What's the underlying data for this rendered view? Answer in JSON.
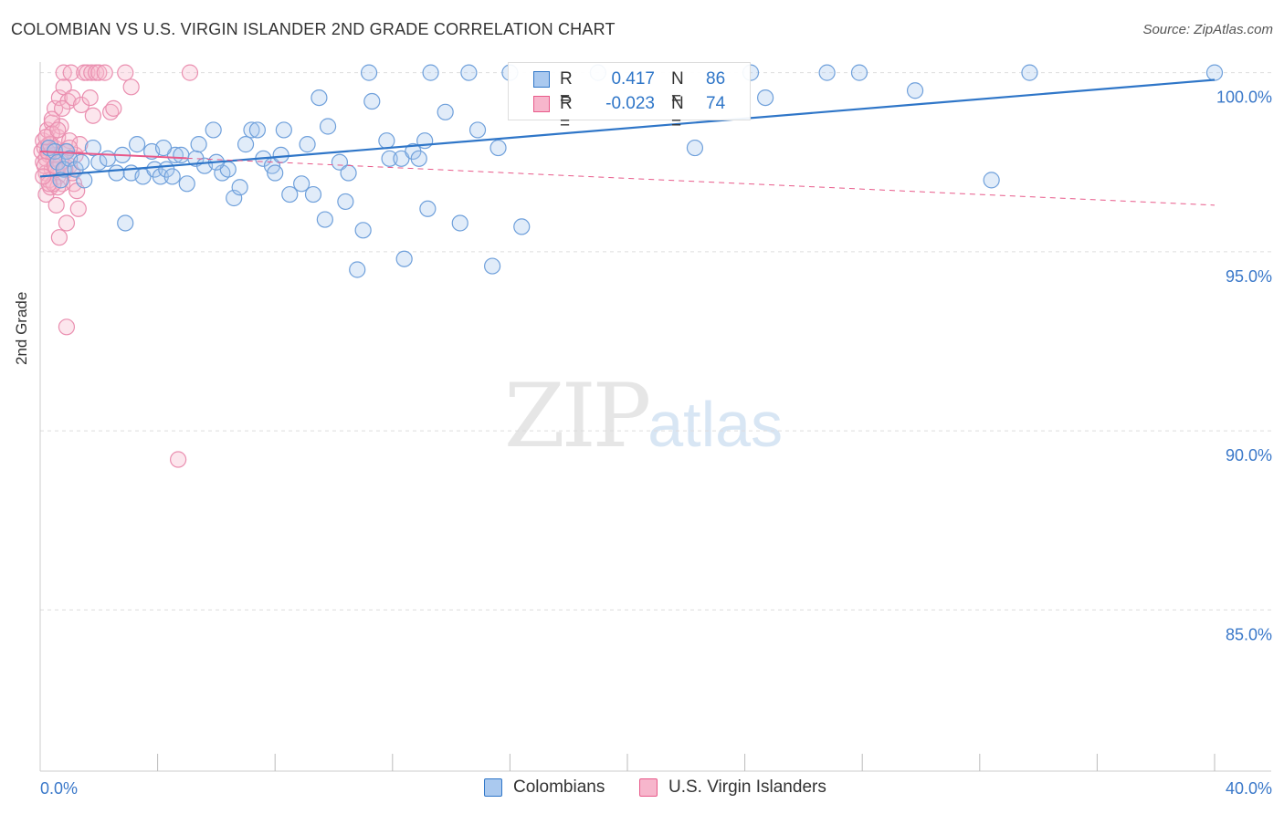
{
  "title": "COLOMBIAN VS U.S. VIRGIN ISLANDER 2ND GRADE CORRELATION CHART",
  "source": "Source: ZipAtlas.com",
  "watermark": {
    "zip": "ZIP",
    "atlas": "atlas"
  },
  "colors": {
    "blue": "#2f76c8",
    "blue_fill": "#aac9ef",
    "pink": "#e85a8a",
    "pink_fill": "#f7b6cc",
    "axis_label": "#3a78c9"
  },
  "legend": {
    "rows": [
      {
        "r_label": "R =",
        "r_value": "0.417",
        "n_label": "N =",
        "n_value": "86"
      },
      {
        "r_label": "R =",
        "r_value": "-0.023",
        "n_label": "N =",
        "n_value": "74"
      }
    ]
  },
  "bottom_legend": {
    "colombians": "Colombians",
    "virgin": "U.S. Virgin Islanders"
  },
  "chart_data": {
    "type": "scatter",
    "title": "COLOMBIAN VS U.S. VIRGIN ISLANDER 2ND GRADE CORRELATION CHART",
    "xlabel": "",
    "ylabel": "2nd Grade",
    "xlim": [
      0,
      40
    ],
    "ylim": [
      80.5,
      100.5
    ],
    "x_tick_labels": [
      "0.0%",
      "40.0%"
    ],
    "y_ticks": [
      100,
      95,
      90,
      85
    ],
    "y_tick_labels": [
      "100.0%",
      "95.0%",
      "90.0%",
      "85.0%"
    ],
    "grid": true,
    "series": [
      {
        "name": "Colombians",
        "color": "#2f76c8",
        "trend": {
          "x": [
            0,
            40
          ],
          "y": [
            97.1,
            99.8
          ]
        },
        "points": [
          [
            0.3,
            97.9
          ],
          [
            0.5,
            97.8
          ],
          [
            0.6,
            97.5
          ],
          [
            0.8,
            97.3
          ],
          [
            0.9,
            97.8
          ],
          [
            1.0,
            97.6
          ],
          [
            1.2,
            97.3
          ],
          [
            1.5,
            97.0
          ],
          [
            1.8,
            97.9
          ],
          [
            2.0,
            97.5
          ],
          [
            2.3,
            97.6
          ],
          [
            2.6,
            97.2
          ],
          [
            2.8,
            97.7
          ],
          [
            2.9,
            95.8
          ],
          [
            3.1,
            97.2
          ],
          [
            3.3,
            98.0
          ],
          [
            3.5,
            97.1
          ],
          [
            3.8,
            97.8
          ],
          [
            3.9,
            97.3
          ],
          [
            4.1,
            97.1
          ],
          [
            4.3,
            97.3
          ],
          [
            4.5,
            97.1
          ],
          [
            4.6,
            97.7
          ],
          [
            4.8,
            97.7
          ],
          [
            5.0,
            96.9
          ],
          [
            5.3,
            97.6
          ],
          [
            5.4,
            98.0
          ],
          [
            5.6,
            97.4
          ],
          [
            5.9,
            98.4
          ],
          [
            6.2,
            97.2
          ],
          [
            6.4,
            97.3
          ],
          [
            6.6,
            96.5
          ],
          [
            6.8,
            96.8
          ],
          [
            7.0,
            98.0
          ],
          [
            7.2,
            98.4
          ],
          [
            7.4,
            98.4
          ],
          [
            7.6,
            97.6
          ],
          [
            7.9,
            97.4
          ],
          [
            8.0,
            97.2
          ],
          [
            8.2,
            97.7
          ],
          [
            8.3,
            98.4
          ],
          [
            8.5,
            96.6
          ],
          [
            8.9,
            96.9
          ],
          [
            9.1,
            98.0
          ],
          [
            9.3,
            96.6
          ],
          [
            9.5,
            99.3
          ],
          [
            9.7,
            95.9
          ],
          [
            9.8,
            98.5
          ],
          [
            10.2,
            97.5
          ],
          [
            10.4,
            96.4
          ],
          [
            10.5,
            97.2
          ],
          [
            10.8,
            94.5
          ],
          [
            11.0,
            95.6
          ],
          [
            11.3,
            99.2
          ],
          [
            11.2,
            100.0
          ],
          [
            11.8,
            98.1
          ],
          [
            11.9,
            97.6
          ],
          [
            12.3,
            97.6
          ],
          [
            12.4,
            94.8
          ],
          [
            12.7,
            97.8
          ],
          [
            12.9,
            97.6
          ],
          [
            13.1,
            98.1
          ],
          [
            13.2,
            96.2
          ],
          [
            13.3,
            100.0
          ],
          [
            13.8,
            98.9
          ],
          [
            14.3,
            95.8
          ],
          [
            14.6,
            100.0
          ],
          [
            14.9,
            98.4
          ],
          [
            15.4,
            94.6
          ],
          [
            15.6,
            97.9
          ],
          [
            16.0,
            100.0
          ],
          [
            16.4,
            95.7
          ],
          [
            19.0,
            100.0
          ],
          [
            22.3,
            97.9
          ],
          [
            24.2,
            100.0
          ],
          [
            24.7,
            99.3
          ],
          [
            26.8,
            100.0
          ],
          [
            27.9,
            100.0
          ],
          [
            29.8,
            99.5
          ],
          [
            32.4,
            97.0
          ],
          [
            33.7,
            100.0
          ],
          [
            40.0,
            100.0
          ],
          [
            0.7,
            97.0
          ],
          [
            1.4,
            97.5
          ],
          [
            6.0,
            97.5
          ],
          [
            4.2,
            97.9
          ]
        ]
      },
      {
        "name": "U.S. Virgin Islanders",
        "color": "#e85a8a",
        "trend": {
          "x": [
            0,
            40
          ],
          "y": [
            97.8,
            96.3
          ],
          "solid_to_x": 5.0
        },
        "points": [
          [
            0.05,
            97.8
          ],
          [
            0.1,
            98.1
          ],
          [
            0.1,
            97.5
          ],
          [
            0.15,
            97.9
          ],
          [
            0.2,
            96.6
          ],
          [
            0.2,
            97.2
          ],
          [
            0.25,
            98.4
          ],
          [
            0.3,
            97.7
          ],
          [
            0.3,
            98.0
          ],
          [
            0.35,
            96.8
          ],
          [
            0.4,
            97.3
          ],
          [
            0.4,
            98.6
          ],
          [
            0.45,
            97.6
          ],
          [
            0.5,
            99.0
          ],
          [
            0.5,
            97.9
          ],
          [
            0.55,
            96.3
          ],
          [
            0.6,
            98.2
          ],
          [
            0.6,
            97.1
          ],
          [
            0.65,
            95.4
          ],
          [
            0.65,
            99.3
          ],
          [
            0.7,
            98.5
          ],
          [
            0.75,
            96.9
          ],
          [
            0.8,
            100.0
          ],
          [
            0.8,
            99.6
          ],
          [
            0.85,
            97.8
          ],
          [
            0.9,
            92.9
          ],
          [
            0.9,
            95.8
          ],
          [
            0.95,
            99.2
          ],
          [
            1.0,
            98.1
          ],
          [
            1.0,
            97.4
          ],
          [
            1.05,
            100.0
          ],
          [
            1.1,
            99.3
          ],
          [
            1.15,
            96.9
          ],
          [
            1.2,
            97.7
          ],
          [
            1.25,
            96.7
          ],
          [
            1.3,
            96.2
          ],
          [
            1.35,
            98.0
          ],
          [
            1.4,
            99.1
          ],
          [
            1.5,
            100.0
          ],
          [
            1.6,
            100.0
          ],
          [
            1.7,
            99.3
          ],
          [
            1.75,
            100.0
          ],
          [
            1.8,
            98.8
          ],
          [
            1.9,
            100.0
          ],
          [
            2.0,
            100.0
          ],
          [
            2.2,
            100.0
          ],
          [
            2.4,
            98.9
          ],
          [
            2.5,
            99.0
          ],
          [
            2.9,
            100.0
          ],
          [
            3.1,
            99.6
          ],
          [
            4.7,
            89.2
          ],
          [
            5.1,
            100.0
          ],
          [
            0.2,
            97.6
          ],
          [
            0.3,
            97.0
          ],
          [
            0.4,
            98.3
          ],
          [
            0.5,
            97.7
          ],
          [
            0.6,
            96.8
          ],
          [
            0.7,
            97.5
          ],
          [
            0.15,
            97.4
          ],
          [
            0.25,
            97.8
          ],
          [
            0.35,
            98.0
          ],
          [
            0.45,
            96.9
          ],
          [
            0.55,
            97.3
          ],
          [
            0.9,
            97.8
          ],
          [
            1.1,
            97.2
          ],
          [
            0.2,
            98.2
          ],
          [
            0.3,
            96.9
          ],
          [
            0.4,
            98.7
          ],
          [
            0.5,
            97.4
          ],
          [
            0.75,
            99.0
          ],
          [
            0.85,
            97.3
          ],
          [
            1.0,
            97.9
          ],
          [
            0.1,
            97.1
          ],
          [
            0.6,
            98.4
          ]
        ]
      }
    ]
  }
}
